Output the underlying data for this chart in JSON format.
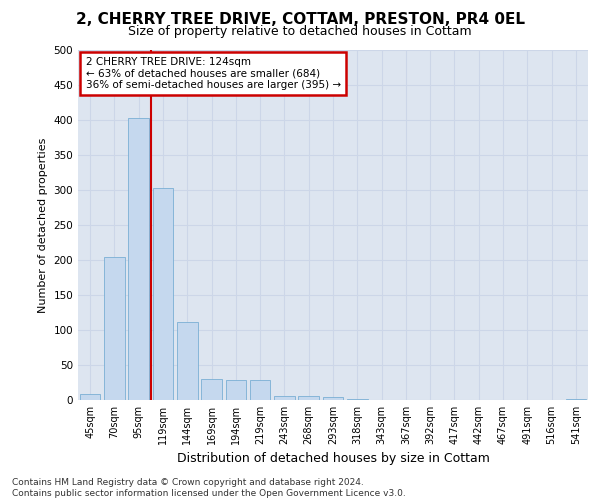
{
  "title_line1": "2, CHERRY TREE DRIVE, COTTAM, PRESTON, PR4 0EL",
  "title_line2": "Size of property relative to detached houses in Cottam",
  "xlabel": "Distribution of detached houses by size in Cottam",
  "ylabel": "Number of detached properties",
  "bar_color": "#c5d8ee",
  "bar_edge_color": "#7aafd4",
  "categories": [
    "45sqm",
    "70sqm",
    "95sqm",
    "119sqm",
    "144sqm",
    "169sqm",
    "194sqm",
    "219sqm",
    "243sqm",
    "268sqm",
    "293sqm",
    "318sqm",
    "343sqm",
    "367sqm",
    "392sqm",
    "417sqm",
    "442sqm",
    "467sqm",
    "491sqm",
    "516sqm",
    "541sqm"
  ],
  "values": [
    8,
    205,
    403,
    303,
    112,
    30,
    29,
    28,
    6,
    6,
    4,
    2,
    0,
    0,
    0,
    0,
    0,
    0,
    0,
    0,
    2
  ],
  "vline_x": 2.5,
  "annotation_text": "2 CHERRY TREE DRIVE: 124sqm\n← 63% of detached houses are smaller (684)\n36% of semi-detached houses are larger (395) →",
  "annotation_box_color": "#ffffff",
  "annotation_box_edge": "#cc0000",
  "vline_color": "#cc0000",
  "grid_color": "#ccd6e8",
  "background_color": "#dde5f0",
  "footer_text": "Contains HM Land Registry data © Crown copyright and database right 2024.\nContains public sector information licensed under the Open Government Licence v3.0.",
  "ylim": [
    0,
    500
  ],
  "yticks": [
    0,
    50,
    100,
    150,
    200,
    250,
    300,
    350,
    400,
    450,
    500
  ],
  "title1_fontsize": 11,
  "title2_fontsize": 9,
  "ylabel_fontsize": 8,
  "xlabel_fontsize": 9,
  "tick_fontsize": 7,
  "annot_fontsize": 7.5,
  "footer_fontsize": 6.5
}
